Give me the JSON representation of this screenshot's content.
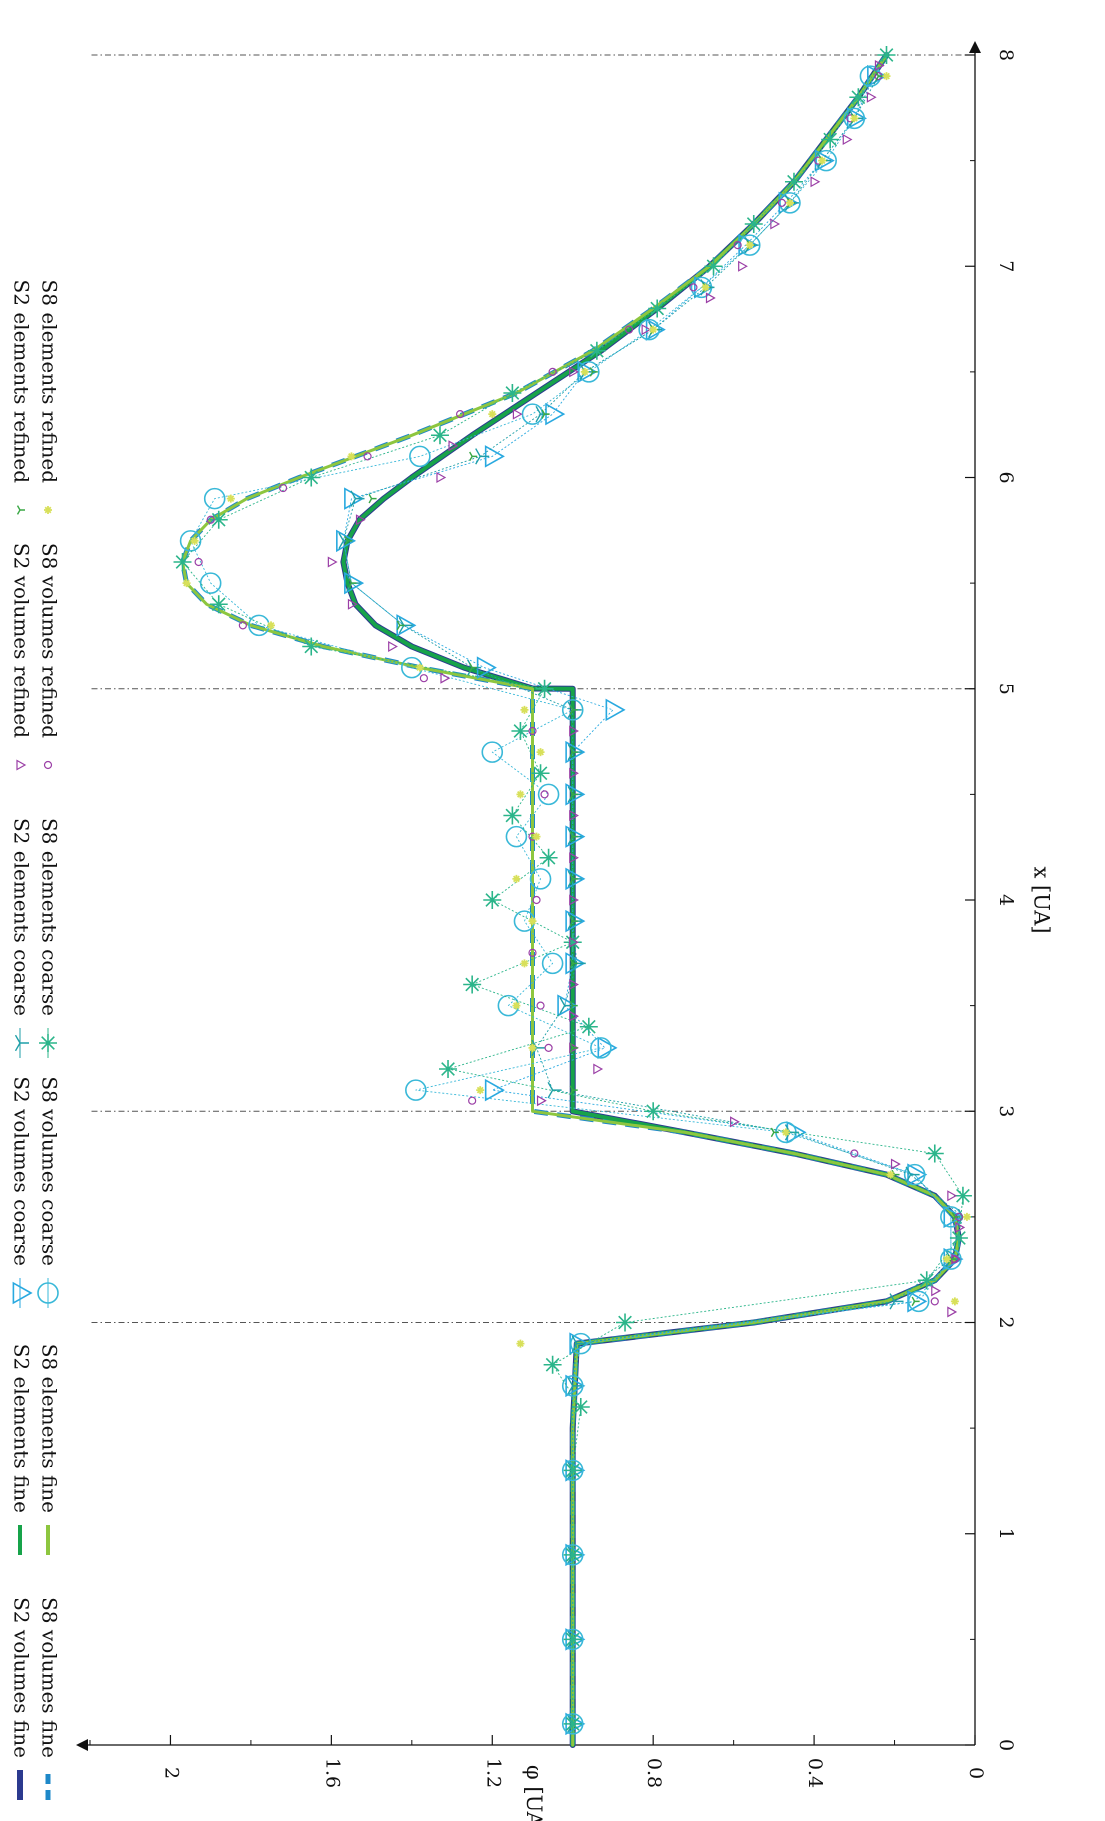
{
  "chart_data": {
    "type": "line",
    "title": "",
    "xlabel": "x [UA]",
    "ylabel": "φ [UA]",
    "xlim": [
      0,
      8
    ],
    "ylim": [
      0,
      2.2
    ],
    "xticks": [
      "0",
      "1",
      "2",
      "3",
      "4",
      "5",
      "6",
      "7",
      "8"
    ],
    "yticks": [
      "0",
      "0.4",
      "0.8",
      "1.2",
      "1.6",
      "2"
    ],
    "xtick_values": [
      0,
      1,
      2,
      3,
      4,
      5,
      6,
      7,
      8
    ],
    "ytick_values": [
      0,
      0.4,
      0.8,
      1.2,
      1.6,
      2
    ],
    "vertical_reference_lines": [
      2,
      3,
      5,
      8
    ],
    "rotation": "figure rotated 90° clockwise (x axis runs top-to-bottom on the right, φ axis runs along the bottom)",
    "legend_placement": "outside-top (left side of rotated figure)",
    "series": [
      {
        "name": "S2 volumes fine",
        "style": "line",
        "color": "#2b3a8f",
        "width": 6,
        "x": [
          0,
          0.5,
          1,
          1.5,
          1.9,
          2,
          2.1,
          2.2,
          2.3,
          2.4,
          2.5,
          2.6,
          2.7,
          2.8,
          2.9,
          3,
          3.001,
          3.5,
          4,
          4.5,
          5,
          5.001,
          5.1,
          5.2,
          5.3,
          5.4,
          5.5,
          5.6,
          5.7,
          5.8,
          5.9,
          6,
          6.2,
          6.4,
          6.6,
          6.8,
          7,
          7.2,
          7.4,
          7.6,
          7.8,
          8
        ],
        "y": [
          1,
          1,
          1,
          1,
          0.99,
          0.55,
          0.22,
          0.1,
          0.05,
          0.04,
          0.05,
          0.1,
          0.22,
          0.45,
          0.72,
          1.0,
          1.0,
          1.0,
          1.0,
          1.0,
          1.0,
          1.1,
          1.27,
          1.4,
          1.49,
          1.54,
          1.56,
          1.57,
          1.56,
          1.53,
          1.47,
          1.4,
          1.25,
          1.09,
          0.93,
          0.79,
          0.66,
          0.55,
          0.45,
          0.37,
          0.29,
          0.22
        ]
      },
      {
        "name": "S8 volumes fine",
        "style": "dashed",
        "color": "#1e88c8",
        "width": 5,
        "x": [
          0,
          0.5,
          1,
          1.5,
          1.9,
          2,
          2.1,
          2.2,
          2.3,
          2.4,
          2.5,
          2.6,
          2.7,
          2.8,
          2.9,
          3,
          3.001,
          3.5,
          4,
          4.5,
          5,
          5.1,
          5.2,
          5.3,
          5.4,
          5.5,
          5.6,
          5.7,
          5.8,
          5.9,
          6,
          6.2,
          6.4,
          6.6,
          6.8,
          7,
          7.2,
          7.4,
          7.6,
          7.8,
          8
        ],
        "y": [
          1,
          1,
          1,
          1,
          0.99,
          0.55,
          0.22,
          0.1,
          0.05,
          0.04,
          0.05,
          0.1,
          0.22,
          0.45,
          0.72,
          1.1,
          1.1,
          1.1,
          1.1,
          1.1,
          1.1,
          1.38,
          1.62,
          1.8,
          1.91,
          1.96,
          1.97,
          1.95,
          1.9,
          1.81,
          1.68,
          1.4,
          1.14,
          0.95,
          0.8,
          0.66,
          0.55,
          0.45,
          0.37,
          0.29,
          0.22
        ]
      },
      {
        "name": "S2 elements fine",
        "style": "line",
        "color": "#17a34a",
        "width": 4,
        "x": [
          0,
          0.5,
          1,
          1.5,
          1.9,
          2,
          2.1,
          2.2,
          2.3,
          2.4,
          2.5,
          2.6,
          2.7,
          2.8,
          2.9,
          3,
          3.001,
          3.5,
          4,
          4.5,
          5,
          5.001,
          5.1,
          5.2,
          5.3,
          5.4,
          5.5,
          5.6,
          5.7,
          5.8,
          5.9,
          6,
          6.2,
          6.4,
          6.6,
          6.8,
          7,
          7.2,
          7.4,
          7.6,
          7.8,
          8
        ],
        "y": [
          1,
          1,
          1,
          1,
          0.99,
          0.55,
          0.22,
          0.1,
          0.05,
          0.04,
          0.05,
          0.1,
          0.22,
          0.45,
          0.72,
          1.0,
          1.0,
          1.0,
          1.0,
          1.0,
          1.0,
          1.1,
          1.27,
          1.4,
          1.49,
          1.54,
          1.56,
          1.57,
          1.56,
          1.53,
          1.47,
          1.4,
          1.25,
          1.09,
          0.93,
          0.79,
          0.66,
          0.55,
          0.45,
          0.37,
          0.29,
          0.22
        ]
      },
      {
        "name": "S8 elements fine",
        "style": "line",
        "color": "#8dc63f",
        "width": 3,
        "x": [
          0,
          0.5,
          1,
          1.5,
          1.9,
          2,
          2.1,
          2.2,
          2.3,
          2.4,
          2.5,
          2.6,
          2.7,
          2.8,
          2.9,
          3,
          3.001,
          3.5,
          4,
          4.5,
          5,
          5.1,
          5.2,
          5.3,
          5.4,
          5.5,
          5.6,
          5.7,
          5.8,
          5.9,
          6,
          6.2,
          6.4,
          6.6,
          6.8,
          7,
          7.2,
          7.4,
          7.6,
          7.8,
          8
        ],
        "y": [
          1,
          1,
          1,
          1,
          0.99,
          0.55,
          0.22,
          0.1,
          0.05,
          0.04,
          0.05,
          0.1,
          0.22,
          0.45,
          0.72,
          1.1,
          1.1,
          1.1,
          1.1,
          1.1,
          1.1,
          1.38,
          1.62,
          1.8,
          1.91,
          1.96,
          1.97,
          1.95,
          1.9,
          1.81,
          1.68,
          1.4,
          1.14,
          0.95,
          0.8,
          0.66,
          0.55,
          0.45,
          0.37,
          0.29,
          0.22
        ]
      },
      {
        "name": "S2 volumes coarse",
        "style": "marker-line",
        "marker": "triangle",
        "color": "#29a9e0",
        "x": [
          0.1,
          0.5,
          0.9,
          1.3,
          1.7,
          1.9,
          2.1,
          2.3,
          2.5,
          2.7,
          2.9,
          3.1,
          3.3,
          3.5,
          3.7,
          3.9,
          4.1,
          4.3,
          4.5,
          4.7,
          4.9,
          5.1,
          5.3,
          5.5,
          5.7,
          5.9,
          6.1,
          6.3,
          6.5,
          6.7,
          6.9,
          7.1,
          7.3,
          7.5,
          7.7,
          7.9
        ],
        "y": [
          1,
          1,
          1,
          1,
          1,
          0.99,
          0.15,
          0.06,
          0.06,
          0.15,
          0.45,
          1.2,
          0.92,
          1.02,
          1.0,
          1.0,
          1.0,
          1.0,
          1.0,
          1.0,
          0.9,
          1.22,
          1.42,
          1.55,
          1.57,
          1.55,
          1.2,
          1.05,
          0.97,
          0.8,
          0.68,
          0.57,
          0.47,
          0.38,
          0.3,
          0.25
        ]
      },
      {
        "name": "S8 volumes coarse",
        "style": "marker-line",
        "marker": "circle",
        "color": "#39b8d8",
        "x": [
          0.1,
          0.5,
          0.9,
          1.3,
          1.7,
          1.9,
          2.1,
          2.3,
          2.5,
          2.7,
          2.9,
          3.1,
          3.3,
          3.5,
          3.7,
          3.9,
          4.1,
          4.3,
          4.5,
          4.7,
          4.9,
          5.1,
          5.3,
          5.5,
          5.7,
          5.9,
          6.1,
          6.3,
          6.5,
          6.7,
          6.9,
          7.1,
          7.3,
          7.5,
          7.7,
          7.9
        ],
        "y": [
          1,
          1,
          1,
          1,
          1,
          0.98,
          0.14,
          0.06,
          0.06,
          0.15,
          0.47,
          1.39,
          0.93,
          1.16,
          1.05,
          1.12,
          1.08,
          1.14,
          1.06,
          1.2,
          1.0,
          1.4,
          1.78,
          1.9,
          1.95,
          1.89,
          1.38,
          1.1,
          0.96,
          0.81,
          0.68,
          0.56,
          0.46,
          0.37,
          0.3,
          0.26
        ]
      },
      {
        "name": "S2 elements coarse",
        "style": "marker-line",
        "marker": "tri-down",
        "color": "#1f9fa8",
        "x": [
          0.1,
          0.5,
          0.9,
          1.3,
          1.7,
          1.9,
          2.1,
          2.3,
          2.5,
          2.7,
          2.9,
          3.1,
          3.3,
          3.5,
          3.7,
          3.9,
          4.1,
          4.3,
          4.5,
          4.7,
          4.9,
          5.1,
          5.3,
          5.5,
          5.7,
          5.9,
          6.1,
          6.3,
          6.5,
          6.7,
          6.9,
          7.1,
          7.3,
          7.5,
          7.7,
          7.9
        ],
        "y": [
          1,
          1,
          1,
          1,
          1,
          0.99,
          0.2,
          0.06,
          0.03,
          0.16,
          0.46,
          1.05,
          1.09,
          1.02,
          0.99,
          1.0,
          1.0,
          1.0,
          1.0,
          1.0,
          1.0,
          1.25,
          1.42,
          1.55,
          1.57,
          1.54,
          1.23,
          1.08,
          0.97,
          0.8,
          0.67,
          0.56,
          0.46,
          0.38,
          0.3,
          0.24
        ]
      },
      {
        "name": "S8 elements coarse",
        "style": "marker-line",
        "marker": "asterisk",
        "color": "#2bb58a",
        "x": [
          0.1,
          0.5,
          0.9,
          1.3,
          1.6,
          1.8,
          2.0,
          2.2,
          2.4,
          2.6,
          2.8,
          3.0,
          3.2,
          3.4,
          3.6,
          3.8,
          4.0,
          4.2,
          4.4,
          4.6,
          4.8,
          5.0,
          5.2,
          5.4,
          5.6,
          5.8,
          6.0,
          6.2,
          6.4,
          6.6,
          6.8,
          7.0,
          7.2,
          7.4,
          7.6,
          7.8,
          8.0
        ],
        "y": [
          1,
          1,
          1,
          1,
          0.98,
          1.05,
          0.87,
          0.12,
          0.04,
          0.03,
          0.1,
          0.8,
          1.31,
          0.96,
          1.25,
          1.0,
          1.2,
          1.06,
          1.15,
          1.08,
          1.13,
          1.07,
          1.65,
          1.88,
          1.97,
          1.88,
          1.65,
          1.33,
          1.15,
          0.94,
          0.79,
          0.65,
          0.55,
          0.45,
          0.36,
          0.29,
          0.22
        ]
      },
      {
        "name": "S2 volumes refined",
        "style": "marker",
        "marker": "triangle-small",
        "color": "#9b3fa6",
        "x": [
          2.05,
          2.15,
          2.3,
          2.45,
          2.6,
          2.75,
          2.95,
          3.05,
          3.2,
          3.3,
          3.45,
          3.6,
          3.8,
          4.0,
          4.2,
          4.4,
          4.6,
          4.8,
          5.05,
          5.2,
          5.4,
          5.6,
          5.8,
          6.0,
          6.15,
          6.3,
          6.5,
          6.7,
          6.85,
          7.0,
          7.2,
          7.4,
          7.6,
          7.8,
          7.95
        ],
        "y": [
          0.06,
          0.1,
          0.05,
          0.04,
          0.06,
          0.2,
          0.6,
          1.08,
          0.94,
          1.0,
          1.0,
          1.0,
          1.0,
          1.0,
          1.0,
          1.0,
          1.0,
          1.0,
          1.32,
          1.45,
          1.55,
          1.6,
          1.53,
          1.33,
          1.3,
          1.14,
          1.0,
          0.82,
          0.66,
          0.58,
          0.5,
          0.4,
          0.32,
          0.26,
          0.24
        ]
      },
      {
        "name": "S8 volumes refined",
        "style": "marker",
        "marker": "circle-small",
        "color": "#9b3fa6",
        "x": [
          2.1,
          2.3,
          2.5,
          2.8,
          3.05,
          3.3,
          3.5,
          3.75,
          4.0,
          4.3,
          4.5,
          4.8,
          5.05,
          5.3,
          5.6,
          5.8,
          5.95,
          6.1,
          6.3,
          6.5,
          6.7,
          6.9,
          7.1,
          7.3,
          7.5,
          7.7,
          7.9
        ],
        "y": [
          0.1,
          0.05,
          0.04,
          0.3,
          1.25,
          1.06,
          1.08,
          1.1,
          1.09,
          1.1,
          1.07,
          1.1,
          1.37,
          1.82,
          1.93,
          1.9,
          1.72,
          1.51,
          1.28,
          1.05,
          0.86,
          0.7,
          0.59,
          0.48,
          0.39,
          0.31,
          0.24
        ]
      },
      {
        "name": "S2 elements refined",
        "style": "marker",
        "marker": "tri-small",
        "color": "#3aa845",
        "x": [
          2.1,
          2.3,
          2.5,
          2.7,
          2.9,
          3.1,
          3.3,
          3.5,
          3.7,
          3.9,
          4.1,
          4.3,
          4.5,
          4.7,
          4.9,
          5.1,
          5.3,
          5.5,
          5.7,
          5.9,
          6.1,
          6.3,
          6.5,
          6.7,
          6.9,
          7.1,
          7.3,
          7.5,
          7.7,
          7.9
        ],
        "y": [
          0.15,
          0.06,
          0.05,
          0.2,
          0.5,
          1.0,
          1.0,
          1.0,
          1.0,
          1.0,
          1.0,
          1.0,
          1.0,
          1.0,
          1.0,
          1.25,
          1.43,
          1.55,
          1.56,
          1.5,
          1.25,
          1.07,
          0.95,
          0.8,
          0.67,
          0.56,
          0.46,
          0.38,
          0.3,
          0.24
        ]
      },
      {
        "name": "S8 elements refined",
        "style": "marker",
        "marker": "star-small",
        "color": "#d8e05a",
        "x": [
          1.9,
          2.1,
          2.3,
          2.5,
          2.7,
          2.9,
          3.1,
          3.3,
          3.5,
          3.7,
          3.9,
          4.1,
          4.3,
          4.5,
          4.7,
          4.9,
          5.1,
          5.3,
          5.5,
          5.7,
          5.9,
          6.1,
          6.3,
          6.5,
          6.7,
          6.9,
          7.1,
          7.3,
          7.5,
          7.7,
          7.9
        ],
        "y": [
          1.13,
          0.05,
          0.07,
          0.02,
          0.21,
          0.47,
          1.23,
          1.1,
          1.14,
          1.12,
          1.1,
          1.14,
          1.09,
          1.13,
          1.08,
          1.12,
          1.38,
          1.75,
          1.96,
          1.94,
          1.85,
          1.55,
          1.2,
          0.97,
          0.8,
          0.67,
          0.56,
          0.46,
          0.38,
          0.3,
          0.22
        ]
      }
    ]
  }
}
